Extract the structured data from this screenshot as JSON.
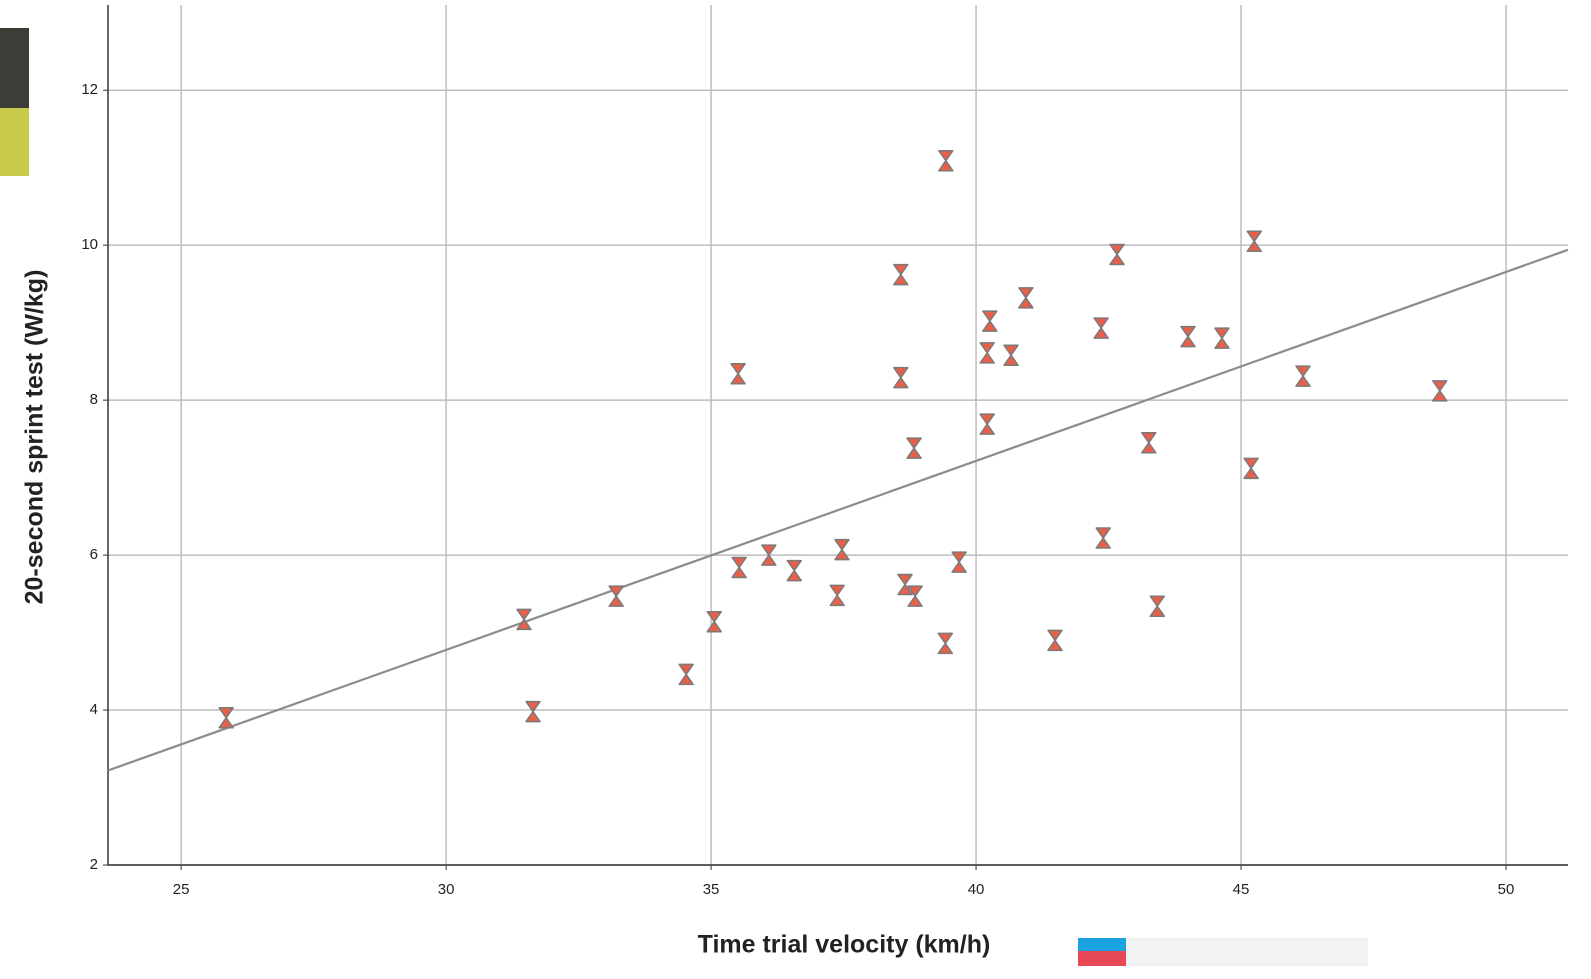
{
  "chart_data": {
    "type": "scatter",
    "x_label": "Time trial velocity (km/h)",
    "y_label": "20-second sprint test (W/kg)",
    "xlim": [
      23.62,
      51.17
    ],
    "ylim": [
      2,
      13.1
    ],
    "xticks": [
      25,
      30,
      35,
      40,
      45,
      50
    ],
    "yticks": [
      2,
      4,
      6,
      8,
      10,
      12
    ],
    "grid": true,
    "color": "#e8604a",
    "fit_line": {
      "x": [
        23.62,
        51.17
      ],
      "y": [
        3.22,
        9.94
      ],
      "color": "#8c8c8c"
    },
    "x": [
      25.85,
      31.47,
      31.64,
      33.21,
      34.53,
      35.06,
      35.51,
      35.53,
      36.09,
      36.57,
      37.38,
      37.47,
      38.58,
      38.58,
      38.66,
      38.83,
      38.85,
      39.43,
      39.42,
      39.68,
      40.21,
      40.21,
      40.26,
      40.66,
      40.94,
      41.49,
      42.36,
      42.4,
      42.66,
      43.26,
      43.42,
      44.0,
      44.64,
      45.19,
      45.25,
      46.17,
      48.75
    ],
    "values": [
      3.9,
      5.17,
      3.98,
      5.47,
      4.46,
      5.14,
      8.34,
      5.84,
      6.0,
      5.8,
      5.48,
      6.07,
      9.62,
      8.29,
      5.62,
      7.38,
      5.47,
      11.09,
      4.86,
      5.91,
      8.61,
      7.69,
      9.02,
      8.58,
      9.32,
      4.9,
      8.93,
      6.22,
      9.88,
      7.45,
      5.34,
      8.82,
      8.8,
      7.12,
      10.05,
      8.31,
      8.12
    ]
  }
}
